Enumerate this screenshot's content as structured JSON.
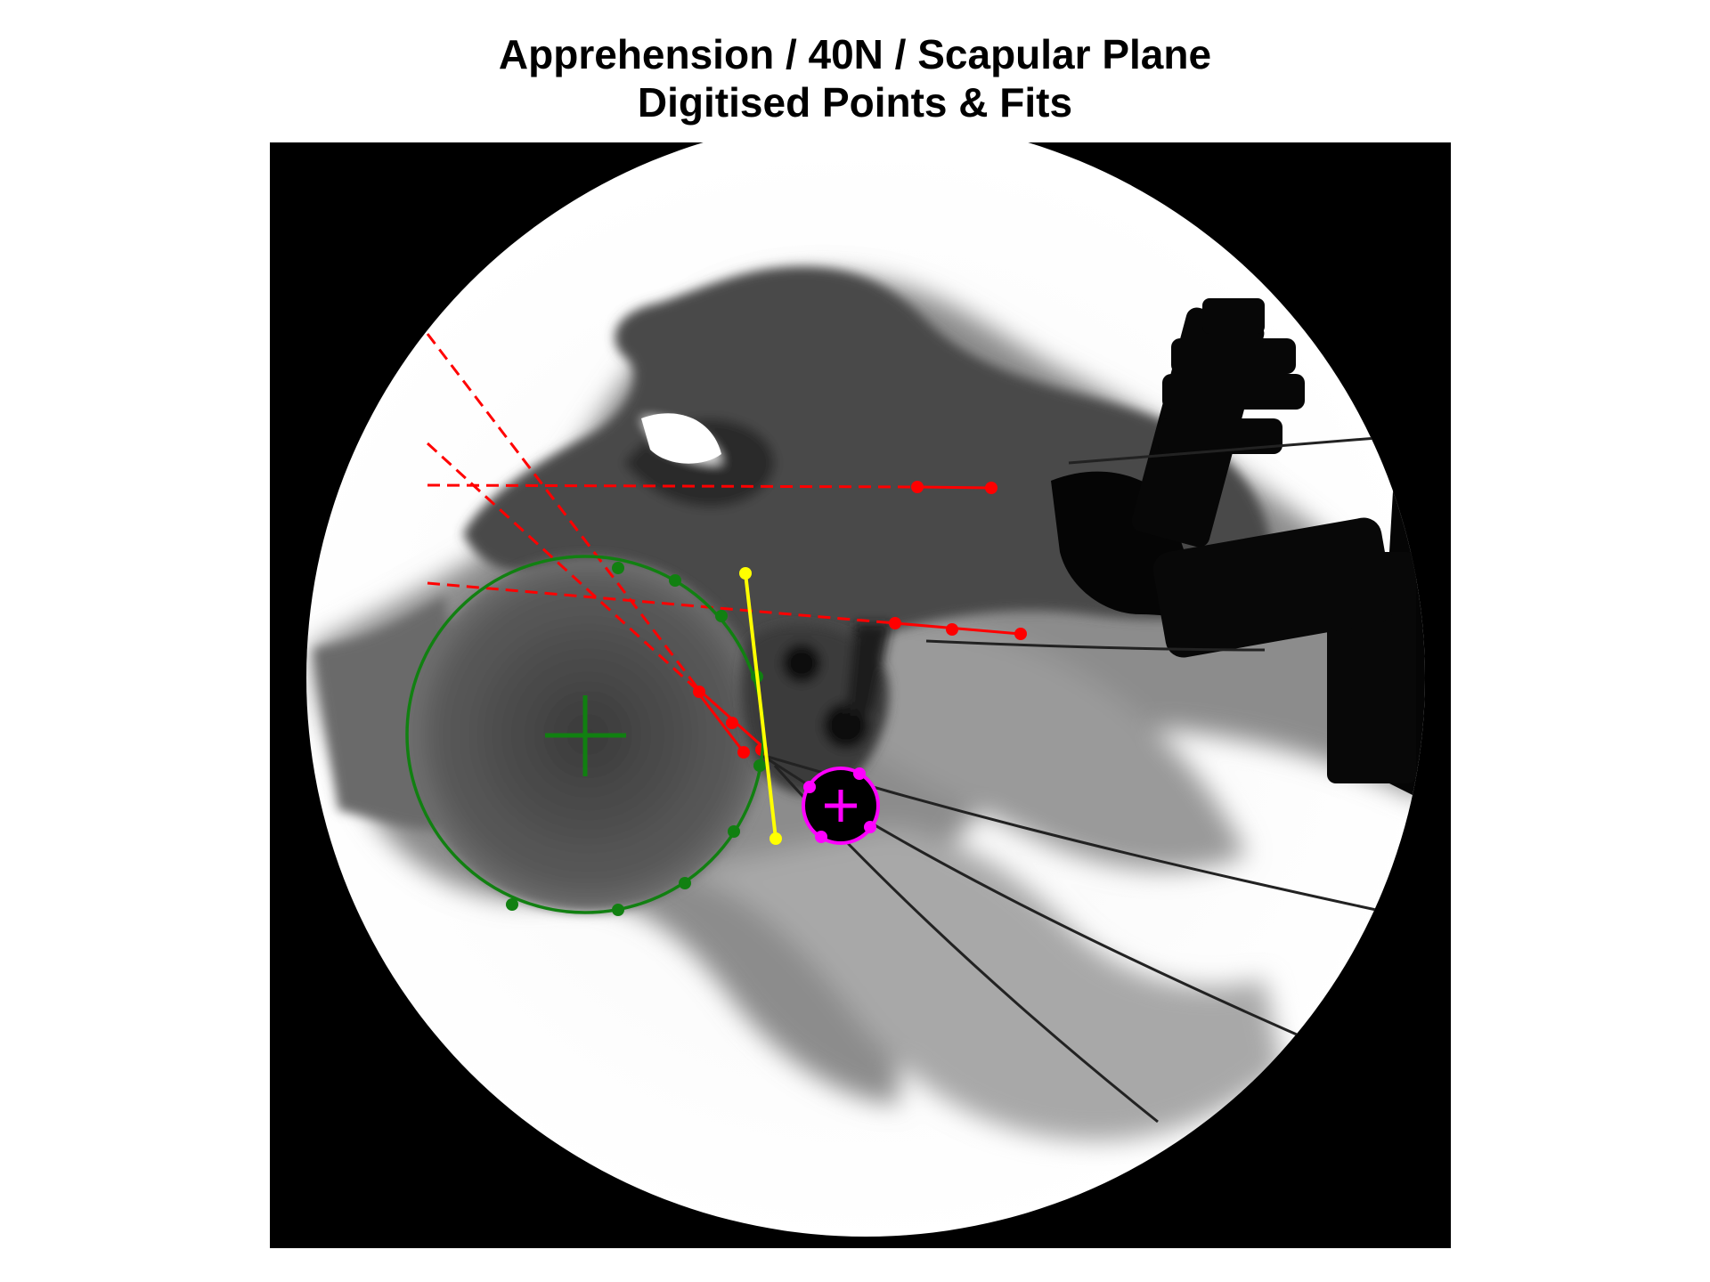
{
  "figure": {
    "title_line1": "Apprehension / 40N / Scapular Plane",
    "title_line2": "Digitised Points & Fits"
  },
  "overlay_colors": {
    "humeral_head_fit": "#118011",
    "glenoid_line": "#ffff00",
    "reference_lines": "#ff0000",
    "marker_fit": "#ff00ff"
  }
}
